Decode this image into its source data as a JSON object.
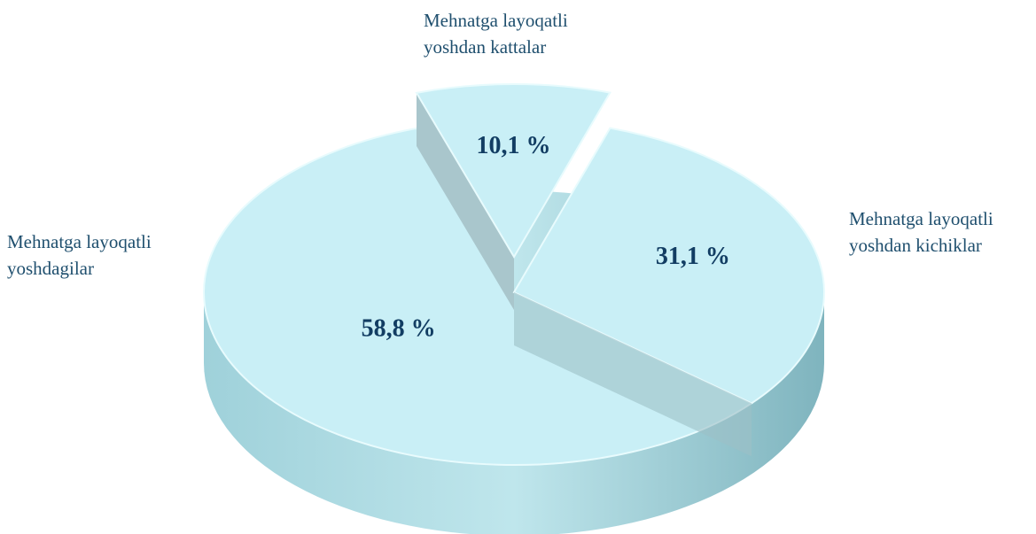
{
  "chart_data": {
    "type": "pie",
    "categories": [
      "Mehnatga layoqatli yoshdagilar",
      "Mehnatga layoqatli yoshdan kattalar",
      "Mehnatga layoqatli yoshdan kichiklar"
    ],
    "values": [
      58.8,
      10.1,
      31.1
    ],
    "value_labels": [
      "58,8 %",
      "10,1 %",
      "31,1 %"
    ],
    "colors": [
      "#c9eff6",
      "#c9eff6",
      "#c9eff6"
    ]
  }
}
